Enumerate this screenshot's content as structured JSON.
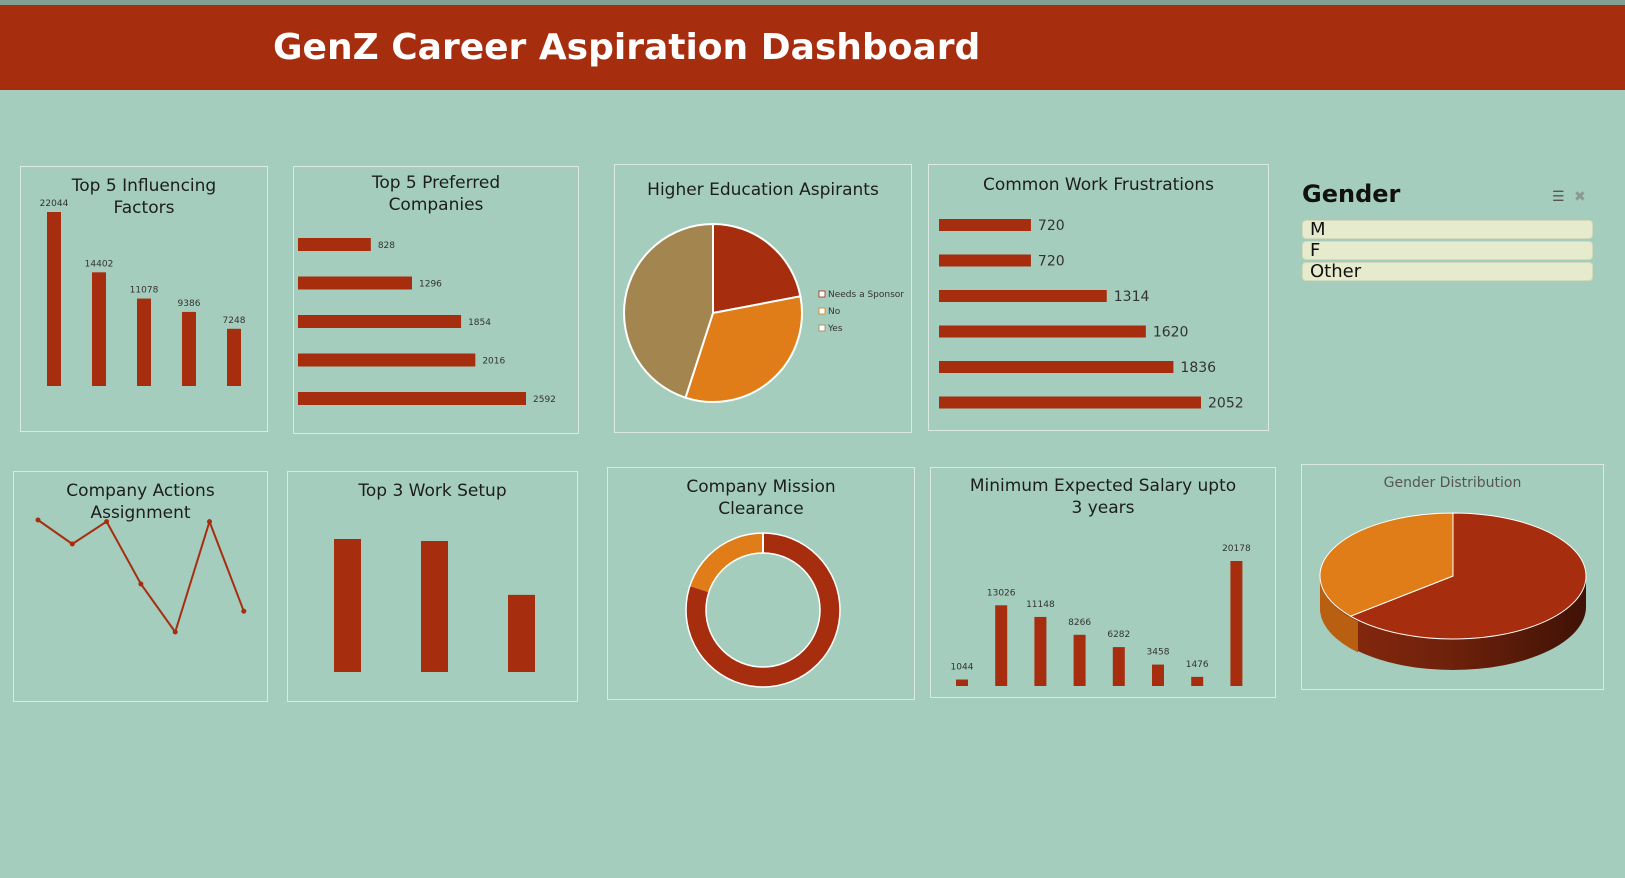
{
  "header": {
    "title": "GenZ Career Aspiration Dashboard"
  },
  "slicer": {
    "title": "Gender",
    "items": [
      "M",
      "F",
      "Other"
    ],
    "icons": {
      "multi_select": "multi-select-icon",
      "clear_filter": "clear-filter-icon"
    }
  },
  "colors": {
    "primary": "#a62e0f",
    "orange": "#e07d19",
    "tan": "#a38550",
    "background": "#a4cdbe",
    "slicer_item": "#e6ebcd"
  },
  "chart_data": [
    {
      "id": "influencing",
      "type": "bar",
      "title_lines": [
        "Top 5 Influencing Factors"
      ],
      "values": [
        22044,
        14402,
        11078,
        9386,
        7248
      ],
      "data_labels": [
        "22044",
        "14402",
        "11078",
        "9386",
        "7248"
      ]
    },
    {
      "id": "companies",
      "type": "bar",
      "orientation": "horizontal",
      "title_lines": [
        "Top 5 Preferred",
        "Companies"
      ],
      "values": [
        828,
        1296,
        1854,
        2016,
        2592
      ],
      "data_labels": [
        "828",
        "1296",
        "1854",
        "2016",
        "2592"
      ]
    },
    {
      "id": "higher_ed",
      "type": "pie",
      "title_lines": [
        "Higher Education Aspirants"
      ],
      "values": [
        22,
        33,
        45
      ],
      "legend": [
        "Needs a Sponsor",
        "No",
        "Yes"
      ],
      "legend_position": "right"
    },
    {
      "id": "frustrations",
      "type": "bar",
      "orientation": "horizontal",
      "title_lines": [
        "Common Work Frustrations"
      ],
      "values": [
        720,
        720,
        1314,
        1620,
        1836,
        2052
      ],
      "data_labels": [
        "720",
        "720",
        "1314",
        "1620",
        "1836",
        "2052"
      ]
    },
    {
      "id": "actions",
      "type": "line",
      "title_lines": [
        "Company Actions",
        "Assignment"
      ],
      "values": [
        10,
        8.5,
        9.9,
        6,
        3,
        9.9,
        4.3
      ]
    },
    {
      "id": "setup",
      "type": "bar",
      "title_lines": [
        "Top 3 Work Setup"
      ],
      "values": [
        100,
        98.5,
        58
      ]
    },
    {
      "id": "mission",
      "type": "donut",
      "title_lines": [
        "Company Mission",
        "Clearance"
      ],
      "values": [
        80,
        20
      ]
    },
    {
      "id": "salary",
      "type": "bar",
      "title_lines": [
        "Minimum Expected Salary upto",
        "3 years"
      ],
      "values": [
        1044,
        13026,
        11148,
        8266,
        6282,
        3458,
        1476,
        20178
      ],
      "data_labels": [
        "1044",
        "13026",
        "11148",
        "8266",
        "6282",
        "3458",
        "1476",
        "20178"
      ]
    },
    {
      "id": "gender_dist",
      "type": "pie",
      "title_lines": [
        "Gender Distribution"
      ],
      "values": [
        64,
        36
      ]
    }
  ]
}
